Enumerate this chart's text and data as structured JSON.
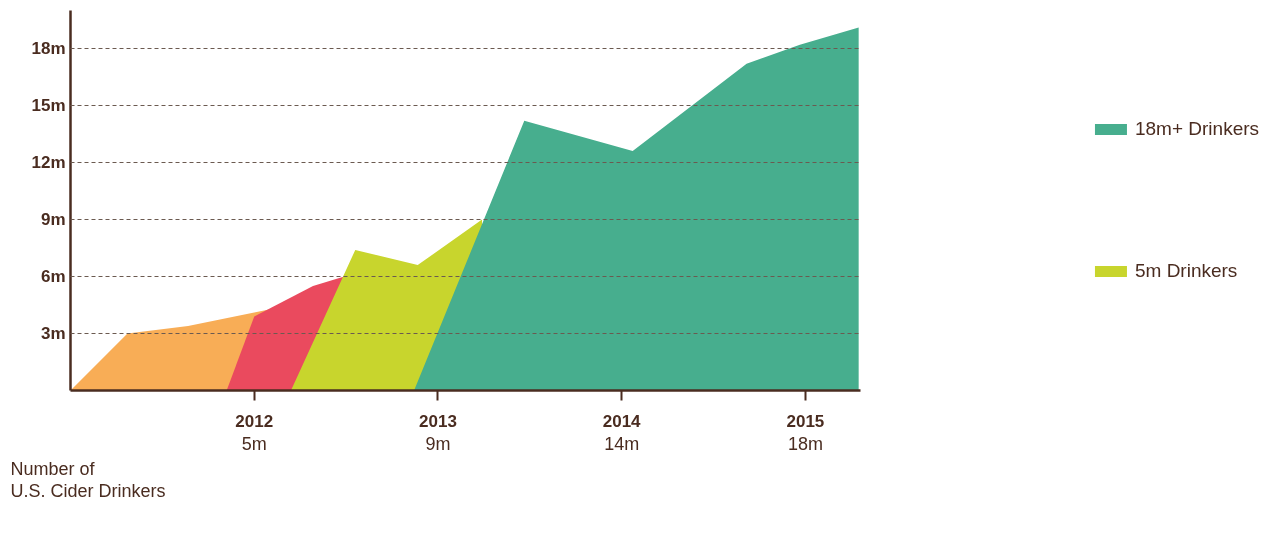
{
  "chart_data": {
    "type": "area",
    "xlim": [
      2011,
      2015.3
    ],
    "ylim": [
      0,
      20
    ],
    "xticks": [
      2012,
      2013,
      2014,
      2015
    ],
    "yticks": [
      {
        "value": 3,
        "label": "3m"
      },
      {
        "value": 6,
        "label": "6m"
      },
      {
        "value": 9,
        "label": "9m"
      },
      {
        "value": 12,
        "label": "12m"
      },
      {
        "value": 15,
        "label": "15m"
      },
      {
        "value": 18,
        "label": "18m"
      }
    ],
    "grid": "y",
    "legend": "right",
    "series": [
      {
        "color": "#f8ad56",
        "x": [
          2011,
          2011.31,
          2011.64,
          2012,
          2012.1
        ],
        "values": [
          0,
          3.0,
          3.4,
          4.1,
          4.3
        ]
      },
      {
        "color": "#ea4a5e",
        "x": [
          2011.85,
          2012,
          2012.32,
          2012.49
        ],
        "values": [
          0,
          3.9,
          5.5,
          6.0
        ]
      },
      {
        "name": "5m Drinkers",
        "color": "#c8d52d",
        "x": [
          2012.2,
          2012.55,
          2012.89,
          2013.24
        ],
        "values": [
          0,
          7.4,
          6.6,
          9.0
        ]
      },
      {
        "name": "18m+ Drinkers",
        "color": "#47ae8e",
        "x": [
          2012.87,
          2013.47,
          2014.06,
          2014.68,
          2014.97,
          2015.29
        ],
        "values": [
          0,
          14.2,
          12.6,
          17.2,
          18.2,
          19.1
        ]
      }
    ],
    "annotations": [
      "Number of\nU.S. Cider Drinkers",
      "5m",
      "9m",
      "14m",
      "18m"
    ]
  }
}
